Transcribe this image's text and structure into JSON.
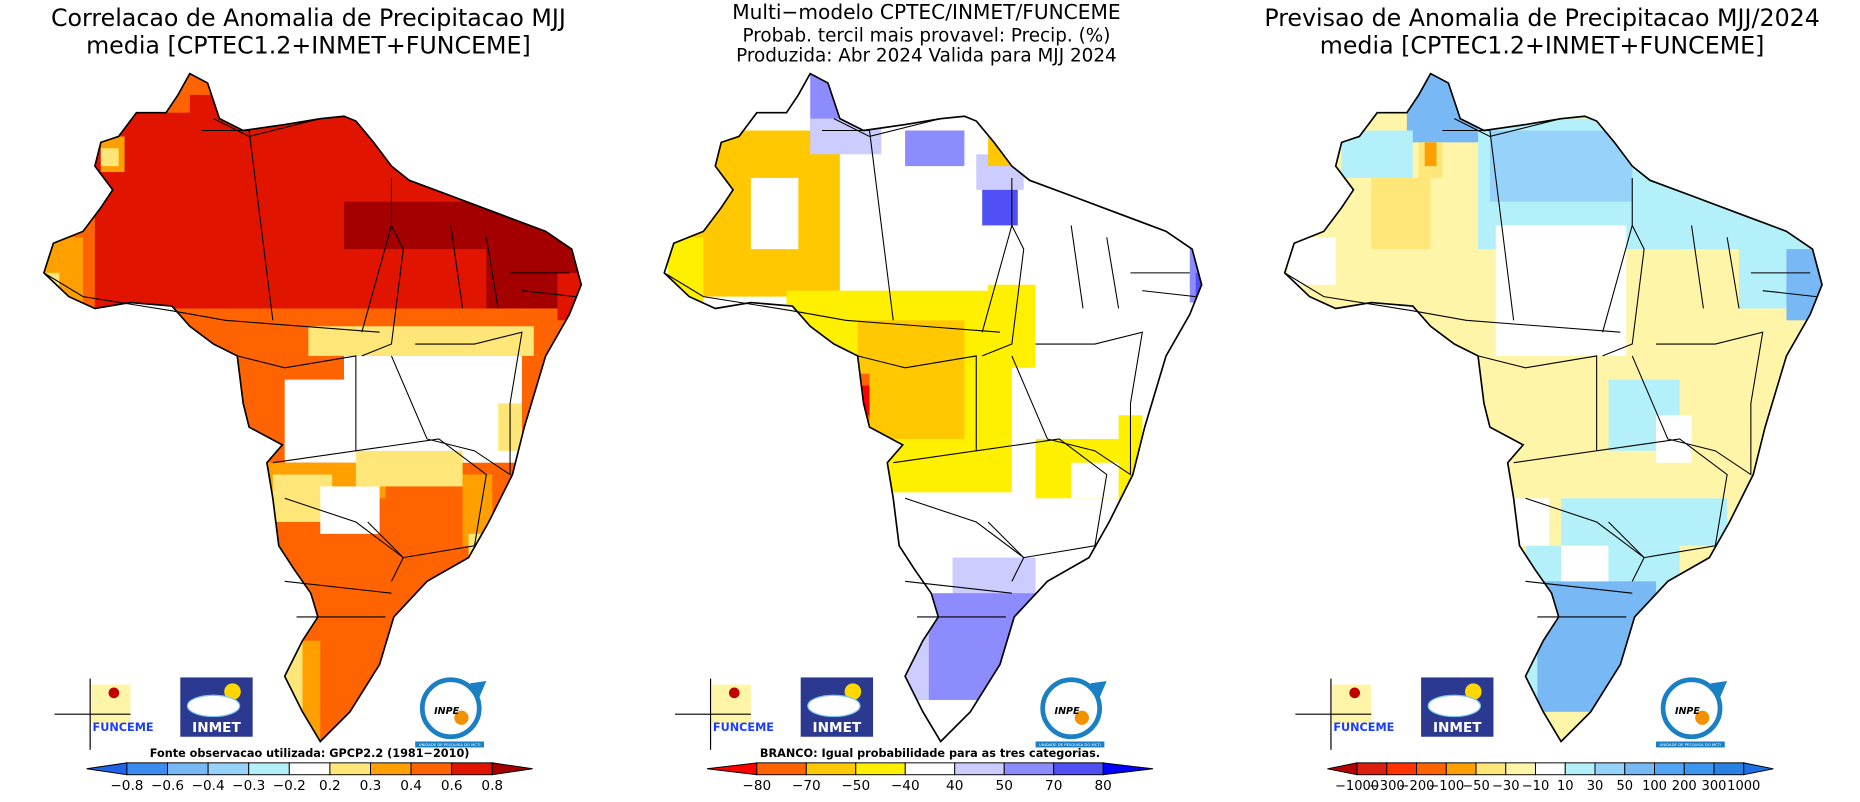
{
  "panels": [
    {
      "title_lines": [
        "Correlacao de Anomalia de Precipitacao MJJ",
        "media [CPTEC1.2+INMET+FUNCEME]"
      ],
      "footnote": "Fonte observacao utilizada: GPCP2.2 (1981−2010)",
      "colorbar": {
        "levels": [
          "−0.8",
          "−0.6",
          "−0.4",
          "−0.3",
          "−0.2",
          "0.2",
          "0.3",
          "0.4",
          "0.6",
          "0.8"
        ],
        "colors": [
          "#1e64e6",
          "#3c8cf0",
          "#78b9f5",
          "#96d2fa",
          "#b4f0fa",
          "#ffffff",
          "#ffe678",
          "#ffa000",
          "#ff6400",
          "#e11400",
          "#a50000"
        ]
      }
    },
    {
      "title_lines": [
        "Multi−modelo CPTEC/INMET/FUNCEME",
        "Probab. tercil mais provavel: Precip. (%)",
        "Produzida: Abr 2024  Valida para MJJ 2024"
      ],
      "footnote": "BRANCO: Igual probabilidade para as tres categorias.",
      "colorbar": {
        "levels": [
          "−80",
          "−70",
          "−50",
          "−40",
          "40",
          "50",
          "70",
          "80"
        ],
        "colors": [
          "#ff0000",
          "#ff6400",
          "#ffc800",
          "#fff000",
          "#ffffff",
          "#ccccff",
          "#8c8cff",
          "#5050f5",
          "#0000ff"
        ]
      }
    },
    {
      "title_lines": [
        "Previsao de Anomalia de Precipitacao MJJ/2024",
        "media [CPTEC1.2+INMET+FUNCEME]"
      ],
      "footnote": "",
      "colorbar": {
        "levels": [
          "−1000",
          "−300",
          "−200",
          "−100",
          "−50",
          "−30",
          "−10",
          "10",
          "30",
          "50",
          "100",
          "200",
          "300",
          "1000"
        ],
        "colors": [
          "#b40000",
          "#dc1e0e",
          "#ff3200",
          "#ff6400",
          "#ffa000",
          "#ffe678",
          "#fff5a8",
          "#ffffff",
          "#b4f0fa",
          "#96d2fa",
          "#78b9f5",
          "#50a5f5",
          "#3c96f0",
          "#2882e6",
          "#1e6ee6"
        ]
      }
    }
  ],
  "logos": {
    "funceme": "FUNCEME",
    "inmet": "INMET",
    "inpe": "INPE",
    "inpe_sub": "UNIDADE DE PESQUISA DO MCTI"
  }
}
